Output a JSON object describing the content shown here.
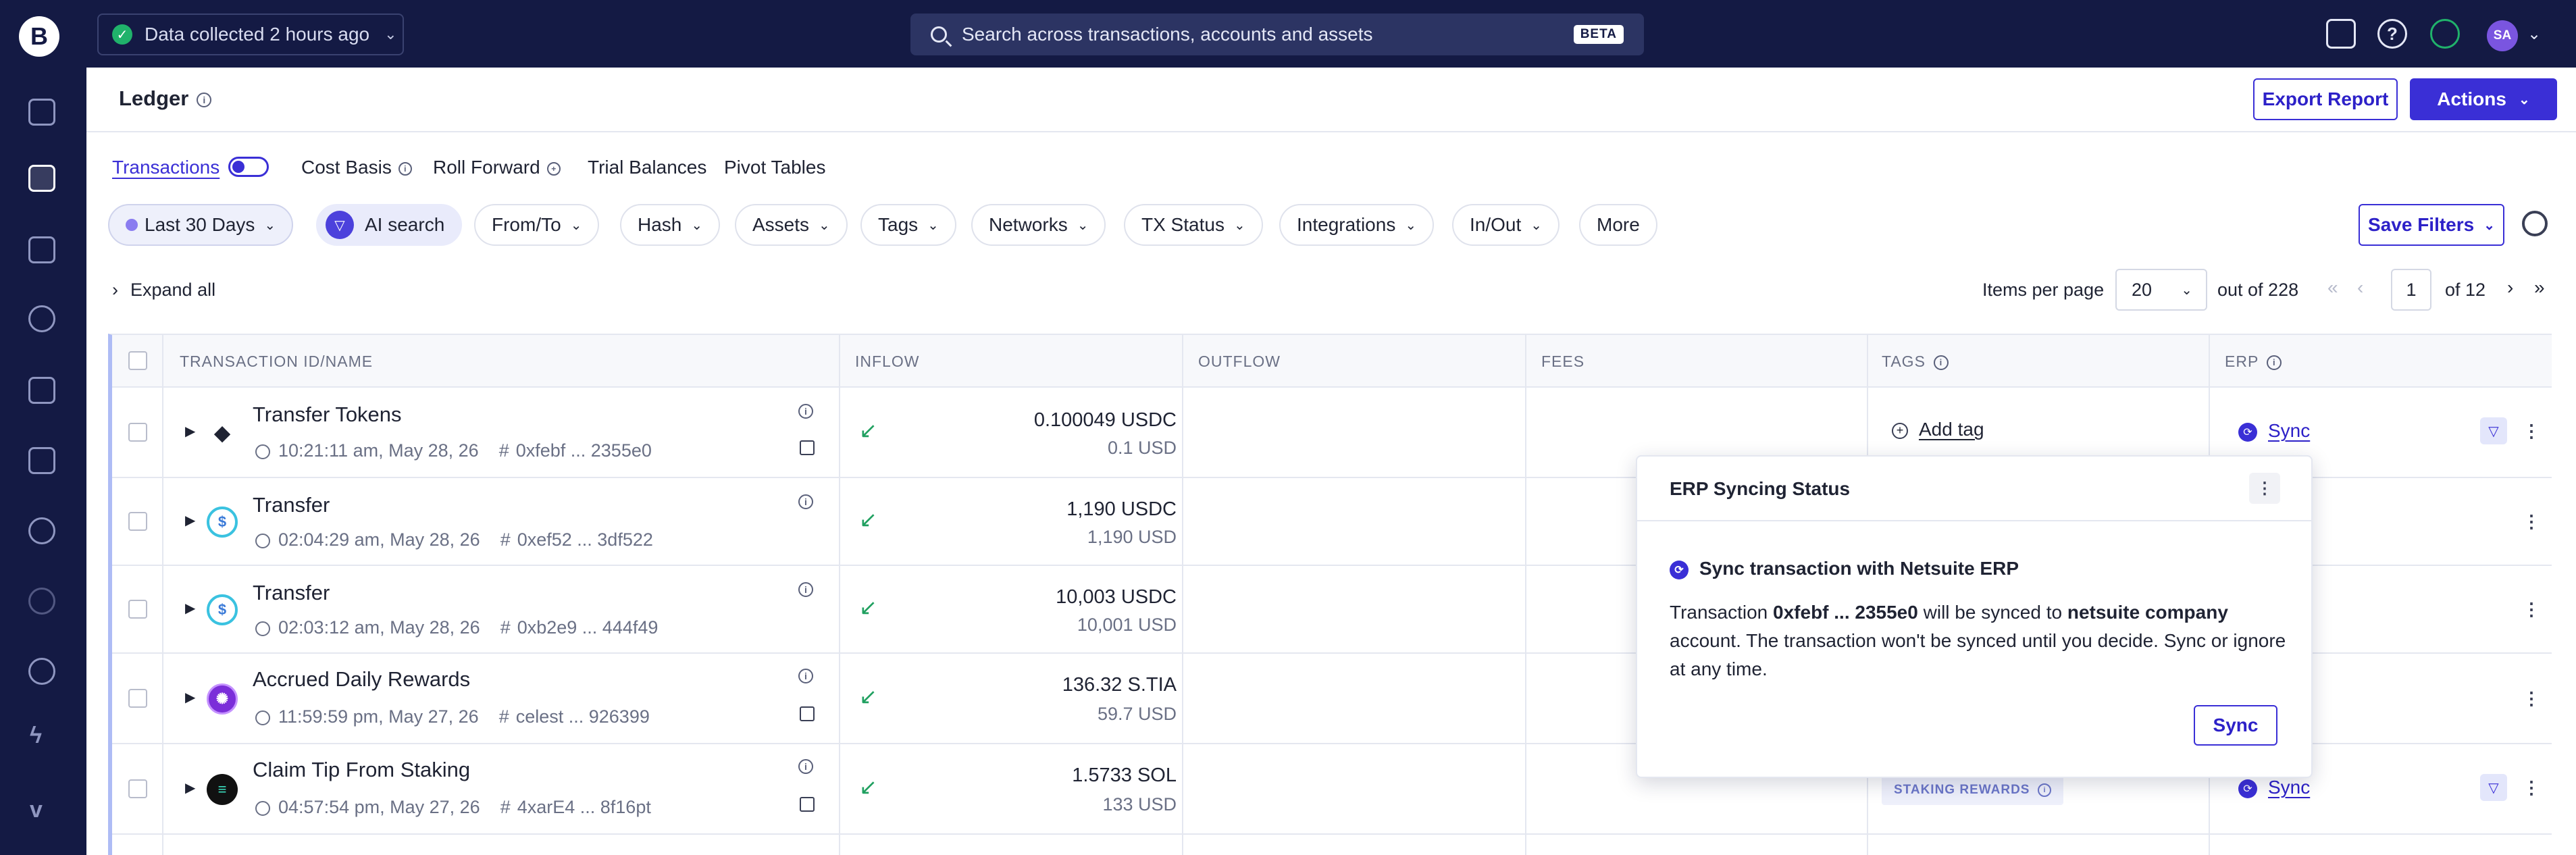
{
  "topbar": {
    "logo": "B",
    "data_status": "Data collected 2 hours ago",
    "search_placeholder": "Search across transactions, accounts and assets",
    "search_badge": "BETA",
    "avatar_initials": "SA"
  },
  "sidebar": {
    "items": [
      "dashboard",
      "ledger",
      "wallets",
      "costs",
      "reports",
      "integrations",
      "staking",
      "tax",
      "cloud",
      "automations",
      "v-logo"
    ]
  },
  "header": {
    "title": "Ledger",
    "export_label": "Export Report",
    "actions_label": "Actions"
  },
  "tabs": [
    {
      "label": "Transactions",
      "active": true
    },
    {
      "label": "Cost Basis"
    },
    {
      "label": "Roll Forward"
    },
    {
      "label": "Trial Balances"
    },
    {
      "label": "Pivot Tables"
    }
  ],
  "filters": {
    "date": "Last 30 Days",
    "ai": "AI search",
    "chips": [
      "From/To",
      "Hash",
      "Assets",
      "Tags",
      "Networks",
      "TX Status",
      "Integrations",
      "In/Out"
    ],
    "more": "More",
    "save_filters": "Save Filters"
  },
  "list": {
    "expand_all": "Expand all",
    "items_per_page_label": "Items per page",
    "items_per_page": "20",
    "out_of": "out of 228",
    "page": "1",
    "of_pages": "of 12"
  },
  "table": {
    "columns": {
      "txn": "TRANSACTION ID/NAME",
      "inflow": "INFLOW",
      "outflow": "OUTFLOW",
      "fees": "FEES",
      "tags": "TAGS",
      "erp": "ERP"
    },
    "rows": [
      {
        "name": "Transfer Tokens",
        "time": "10:21:11 am, May 28, 26",
        "hash": "0xfebf ... 2355e0",
        "inflow": "0.100049 USDC",
        "inflow_usd": "0.1 USD",
        "token": "eth",
        "tag": "Add tag",
        "erp": "Sync"
      },
      {
        "name": "Transfer",
        "time": "02:04:29 am, May 28, 26",
        "hash": "0xef52 ... 3df522",
        "inflow": "1,190 USDC",
        "inflow_usd": "1,190 USD",
        "token": "usdc"
      },
      {
        "name": "Transfer",
        "time": "02:03:12 am, May 28, 26",
        "hash": "0xb2e9 ... 444f49",
        "inflow": "10,003 USDC",
        "inflow_usd": "10,001 USD",
        "token": "usdc"
      },
      {
        "name": "Accrued Daily Rewards",
        "time": "11:59:59 pm, May 27, 26",
        "hash": "celest ... 926399",
        "inflow": "136.32 S.TIA",
        "inflow_usd": "59.7 USD",
        "token": "tia"
      },
      {
        "name": "Claim Tip From Staking",
        "time": "04:57:54 pm, May 27, 26",
        "hash": "4xarE4 ... 8f16pt",
        "inflow": "1.5733 SOL",
        "inflow_usd": "133 USD",
        "token": "sol",
        "tag": "STAKING REWARDS",
        "erp": "Sync"
      }
    ]
  },
  "popover": {
    "title": "ERP Syncing Status",
    "subtitle": "Sync transaction with Netsuite ERP",
    "body_prefix": "Transaction ",
    "body_hash": "0xfebf ... 2355e0",
    "body_mid": " will be synced to ",
    "body_account": "netsuite company",
    "body_suffix": " account. The transaction won't be synced until you decide. Sync or ignore at any time.",
    "sync_label": "Sync"
  },
  "colors": {
    "nav": "#141a44",
    "accent": "#3a2fd6",
    "inflow": "#20a060"
  }
}
